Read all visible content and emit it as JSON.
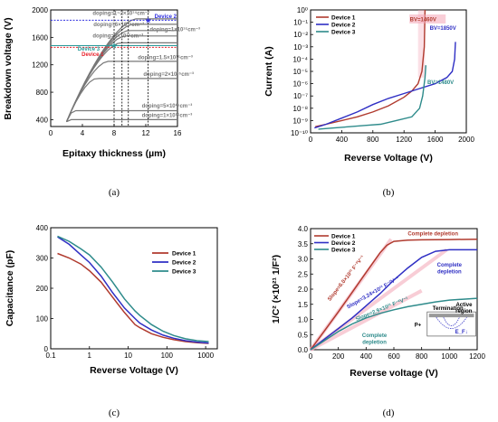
{
  "colors": {
    "d1": "#b03a2e",
    "d2": "#2f2fc4",
    "d3": "#2e8b8b",
    "gray": "#777777",
    "red": "#e8202a",
    "blue": "#3030e0",
    "pink": "#f4a6b6",
    "teal": "#2a9a9a"
  },
  "chart_data": [
    {
      "panel_label": "(a)",
      "type": "line",
      "xlabel": "Epitaxy thickness (µm)",
      "ylabel": "Breakdown voltage (V)",
      "xlim": [
        0,
        16
      ],
      "ylim": [
        300,
        2000
      ],
      "xticks": [
        "0",
        "4",
        "8",
        "12",
        "16"
      ],
      "yticks": [
        "400",
        "800",
        "1200",
        "1600",
        "2000"
      ],
      "curves": [
        {
          "name": "doping=1~2×10¹⁴cm⁻³",
          "plateau": 1870
        },
        {
          "name": "doping=6×10¹⁴cm⁻³",
          "plateau": 1790
        },
        {
          "name": "doping=1×10¹⁵cm⁻³",
          "plateau": 1700
        },
        {
          "name": "doping=8×10¹⁴cm⁻³",
          "plateau": 1620
        },
        {
          "name": "doping=9×10¹⁴cm⁻³",
          "plateau": 1520
        },
        {
          "name": "doping=1.5×10¹⁵cm⁻³",
          "plateau": 1250
        },
        {
          "name": "doping=2×10¹⁵cm⁻³",
          "plateau": 1000
        },
        {
          "name": "doping=5×10¹⁵cm⁻³",
          "plateau": 530
        },
        {
          "name": "doping=1×10¹⁶cm⁻³",
          "plateau": 400
        }
      ],
      "markers": [
        {
          "label": "Device 2",
          "x": 12.3,
          "y": 1850
        },
        {
          "label": "Device 3",
          "x": 8.0,
          "y": 1480
        },
        {
          "label": "Device 1",
          "x": 9.0,
          "y": 1460
        }
      ]
    },
    {
      "panel_label": "(b)",
      "type": "line",
      "xlabel": "Reverse Voltage (V)",
      "ylabel": "Current (A)",
      "xlim": [
        0,
        2000
      ],
      "ylim_exp": [
        -10,
        0
      ],
      "yscale": "log",
      "xticks": [
        "0",
        "400",
        "800",
        "1200",
        "1600",
        "2000"
      ],
      "yticks": [
        "10⁰",
        "10⁻¹",
        "10⁻²",
        "10⁻³",
        "10⁻⁴",
        "10⁻⁵",
        "10⁻⁶",
        "10⁻⁷",
        "10⁻⁸",
        "10⁻⁹",
        "10⁻¹⁰"
      ],
      "series": [
        {
          "name": "Device 1",
          "x": [
            60,
            200,
            400,
            600,
            800,
            1000,
            1200,
            1300,
            1380,
            1430,
            1460,
            1470
          ],
          "y": [
            -9.5,
            -9.3,
            -9.0,
            -8.7,
            -8.3,
            -7.8,
            -7.1,
            -6.6,
            -6.0,
            -5.0,
            -3.0,
            0
          ]
        },
        {
          "name": "Device 2",
          "x": [
            50,
            200,
            400,
            600,
            800,
            1000,
            1200,
            1400,
            1600,
            1750,
            1820,
            1850,
            1860
          ],
          "y": [
            -9.6,
            -9.3,
            -8.8,
            -8.3,
            -7.7,
            -7.2,
            -6.8,
            -6.4,
            -6.0,
            -5.5,
            -5.0,
            -4.0,
            -2.6
          ]
        },
        {
          "name": "Device 3",
          "x": [
            100,
            300,
            500,
            700,
            900,
            1100,
            1300,
            1400,
            1440,
            1470,
            1480
          ],
          "y": [
            -9.7,
            -9.6,
            -9.5,
            -9.4,
            -9.3,
            -9.0,
            -8.7,
            -8.0,
            -7.0,
            -5.5,
            -4.5
          ]
        }
      ],
      "annotations": [
        {
          "text": "BV=1460V"
        },
        {
          "text": "BV=1850V"
        },
        {
          "text": "BV=1480V"
        }
      ]
    },
    {
      "panel_label": "(c)",
      "type": "line",
      "xlabel": "Reverse Voltage (V)",
      "ylabel": "Capacitance (pF)",
      "xlim": [
        0.1,
        2000
      ],
      "xscale": "log",
      "ylim": [
        0,
        400
      ],
      "xticks": [
        "0.1",
        "1",
        "10",
        "100",
        "1000"
      ],
      "yticks": [
        "0",
        "100",
        "200",
        "300",
        "400"
      ],
      "series": [
        {
          "name": "Device 1",
          "x": [
            0.15,
            0.3,
            0.6,
            1,
            2,
            4,
            8,
            15,
            20,
            40,
            80,
            150,
            300,
            600,
            1200
          ],
          "y": [
            315,
            300,
            280,
            258,
            220,
            170,
            120,
            80,
            70,
            50,
            38,
            30,
            24,
            20,
            18
          ]
        },
        {
          "name": "Device 2",
          "x": [
            0.15,
            0.3,
            0.6,
            1,
            2,
            4,
            8,
            15,
            20,
            40,
            80,
            150,
            300,
            600,
            1200
          ],
          "y": [
            370,
            345,
            310,
            285,
            240,
            185,
            135,
            100,
            85,
            62,
            45,
            35,
            27,
            22,
            19
          ]
        },
        {
          "name": "Device 3",
          "x": [
            0.15,
            0.3,
            0.6,
            1,
            2,
            4,
            8,
            15,
            20,
            40,
            80,
            150,
            300,
            600,
            1200
          ],
          "y": [
            372,
            355,
            330,
            310,
            270,
            220,
            165,
            125,
            110,
            80,
            58,
            44,
            33,
            27,
            24
          ]
        }
      ]
    },
    {
      "panel_label": "(d)",
      "type": "line",
      "xlabel": "Reverse voltage (V)",
      "ylabel": "1/C² (×10²¹ 1/F²)",
      "xlim": [
        0,
        1200
      ],
      "ylim": [
        0,
        4.0
      ],
      "xticks": [
        "0",
        "200",
        "400",
        "600",
        "800",
        "1000",
        "1200"
      ],
      "yticks": [
        "0.0",
        "0.5",
        "1.0",
        "1.5",
        "2.0",
        "2.5",
        "3.0",
        "3.5",
        "4.0"
      ],
      "series": [
        {
          "name": "Device 1",
          "x": [
            0,
            100,
            200,
            300,
            400,
            500,
            550,
            600,
            700,
            800,
            1000,
            1200
          ],
          "y": [
            0,
            0.62,
            1.25,
            1.9,
            2.55,
            3.2,
            3.45,
            3.58,
            3.62,
            3.63,
            3.64,
            3.65
          ]
        },
        {
          "name": "Device 2",
          "x": [
            0,
            100,
            200,
            300,
            400,
            500,
            600,
            700,
            800,
            900,
            1000,
            1200
          ],
          "y": [
            0,
            0.35,
            0.7,
            1.05,
            1.45,
            1.85,
            2.3,
            2.7,
            3.05,
            3.25,
            3.3,
            3.3
          ]
        },
        {
          "name": "Device 3",
          "x": [
            0,
            100,
            200,
            300,
            400,
            500,
            600,
            700,
            800,
            900,
            1000,
            1200
          ],
          "y": [
            0,
            0.3,
            0.6,
            0.85,
            1.05,
            1.2,
            1.32,
            1.42,
            1.5,
            1.58,
            1.64,
            1.7
          ]
        }
      ],
      "annotations": {
        "complete1": "Complete depletion",
        "complete2a": "Complete",
        "complete2b": "depletion",
        "complete3a": "Complete",
        "complete3b": "depletion",
        "slope1": "Slope=6.0×10²¹ F⁻²V⁻¹",
        "slope2": "Slope=3.24×10²¹ F⁻²V⁻¹",
        "slope3": "Slope=2.9×10²¹ F⁻²V⁻¹",
        "termination": "Termination",
        "active_a": "Active",
        "active_b": "region",
        "pplus": "P+",
        "ef": "E_F↓"
      }
    }
  ]
}
